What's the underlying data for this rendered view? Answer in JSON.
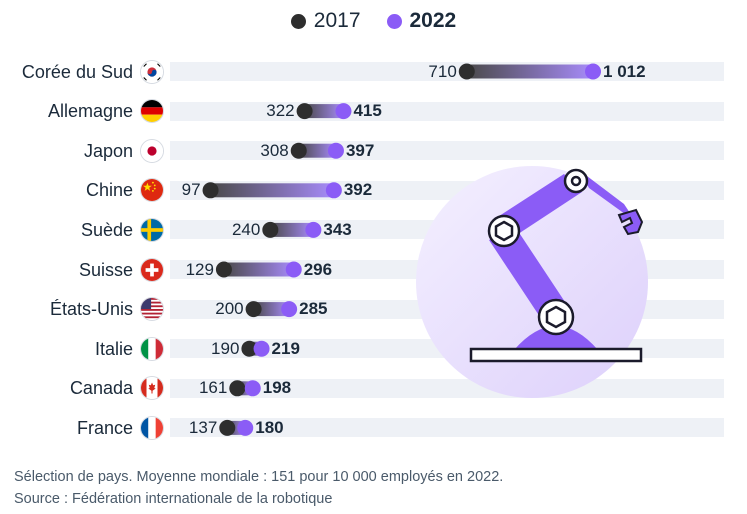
{
  "legend": {
    "items": [
      {
        "label": "2017",
        "color": "#2e2e2e",
        "bold": false
      },
      {
        "label": "2022",
        "color": "#8b5cf6",
        "bold": true
      }
    ]
  },
  "chart_data": {
    "type": "dumbbell",
    "categories": [
      "Corée du Sud",
      "Allemagne",
      "Japon",
      "Chine",
      "Suède",
      "Suisse",
      "États-Unis",
      "Italie",
      "Canada",
      "France"
    ],
    "flags": [
      "south-korea-flag-icon",
      "germany-flag-icon",
      "japan-flag-icon",
      "china-flag-icon",
      "sweden-flag-icon",
      "switzerland-flag-icon",
      "usa-flag-icon",
      "italy-flag-icon",
      "canada-flag-icon",
      "france-flag-icon"
    ],
    "series": [
      {
        "name": "2017",
        "values": [
          710,
          322,
          308,
          97,
          240,
          129,
          200,
          190,
          161,
          137
        ],
        "labels": [
          "710",
          "322",
          "308",
          "97",
          "240",
          "129",
          "200",
          "190",
          "161",
          "137"
        ],
        "color": "#2e2e2e"
      },
      {
        "name": "2022",
        "values": [
          1012,
          415,
          397,
          392,
          343,
          296,
          285,
          219,
          198,
          180
        ],
        "labels": [
          "1 012",
          "415",
          "397",
          "392",
          "343",
          "296",
          "285",
          "219",
          "198",
          "180"
        ],
        "color": "#8b5cf6"
      }
    ],
    "xlim": [
      0,
      1100
    ],
    "grid": false
  },
  "footnote": {
    "line1": "Sélection de pays. Moyenne mondiale : 151 pour 10 000 employés en 2022.",
    "line2": "Source : Fédération internationale de la robotique"
  },
  "illustration": "robot-arm-icon"
}
